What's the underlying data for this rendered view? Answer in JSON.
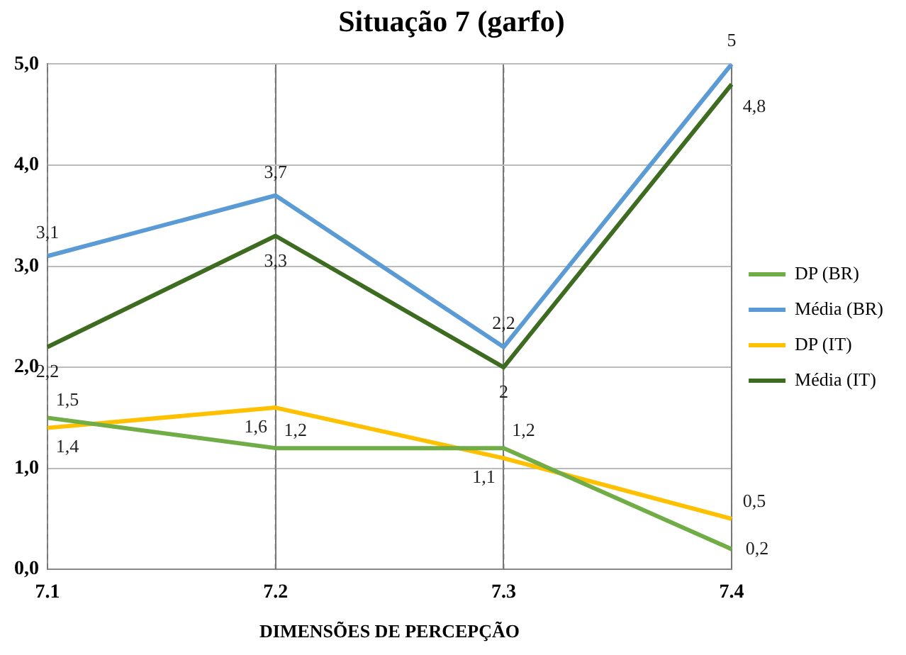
{
  "chart_data": {
    "type": "line",
    "title": "Situação 7 (garfo)",
    "xlabel": "DIMENSÕES DE PERCEPÇÃO",
    "categories": [
      "7.1",
      "7.2",
      "7.3",
      "7.4"
    ],
    "series": [
      {
        "name": "DP (BR)",
        "color": "#70ad47",
        "values": [
          1.5,
          1.2,
          1.2,
          0.2
        ],
        "value_labels": [
          "1,5",
          "1,2",
          "1,2",
          "0,2"
        ]
      },
      {
        "name": "Média (BR)",
        "color": "#5b9bd5",
        "values": [
          3.1,
          3.7,
          2.2,
          5
        ],
        "value_labels": [
          "3,1",
          "3,7",
          "2,2",
          "5"
        ]
      },
      {
        "name": "DP (IT)",
        "color": "#ffc000",
        "values": [
          1.4,
          1.6,
          1.1,
          0.5
        ],
        "value_labels": [
          "1,4",
          "1,6",
          "1,1",
          "0,5"
        ]
      },
      {
        "name": "Média (IT)",
        "color": "#3d6b1f",
        "values": [
          2.2,
          3.3,
          2,
          4.8
        ],
        "value_labels": [
          "2,2",
          "3,3",
          "2",
          "4,8"
        ]
      }
    ],
    "ylim": [
      0,
      5
    ],
    "yticks": [
      {
        "value": 0,
        "label": "0,0"
      },
      {
        "value": 1,
        "label": "1,0"
      },
      {
        "value": 2,
        "label": "2,0"
      },
      {
        "value": 3,
        "label": "3,0"
      },
      {
        "value": 4,
        "label": "4,0"
      },
      {
        "value": 5,
        "label": "5,0"
      }
    ],
    "grid": true,
    "legend": "right",
    "marker": "none",
    "line_style": "solid"
  }
}
